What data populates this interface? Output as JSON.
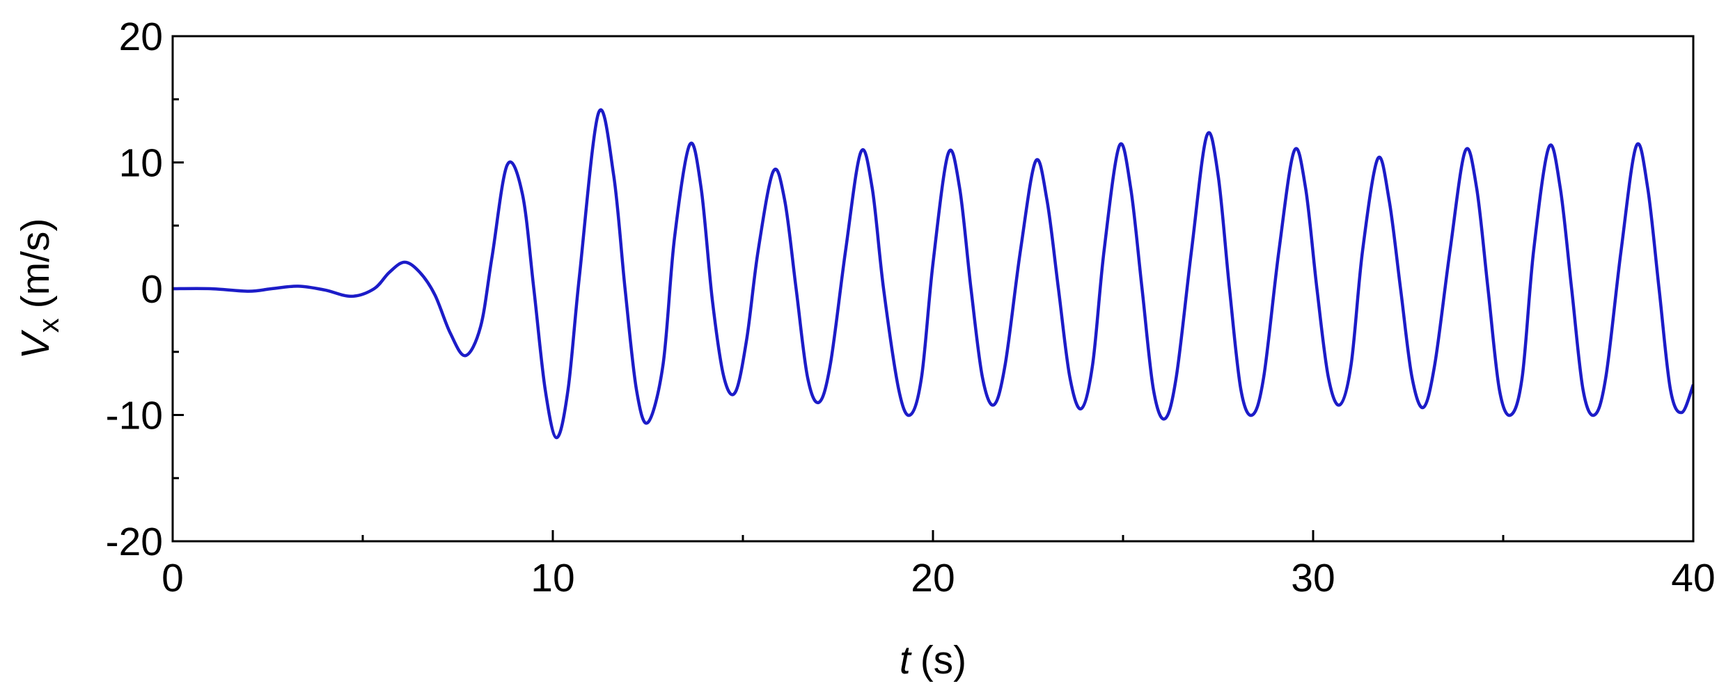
{
  "chart_data": {
    "type": "line",
    "xlabel": {
      "variable": "t",
      "unit": "(s)"
    },
    "ylabel": {
      "variable": "V",
      "subscript": "x",
      "unit": "(m/s)"
    },
    "x": [
      0,
      1,
      2,
      2.6,
      3.3,
      4.0,
      4.7,
      5.3,
      5.7,
      6.1,
      6.5,
      6.9,
      7.3,
      7.7,
      8.1,
      8.4,
      8.8,
      9.2,
      9.5,
      9.8,
      10.1,
      10.4,
      10.7,
      11.2,
      11.6,
      11.9,
      12.2,
      12.5,
      12.9,
      13.2,
      13.6,
      13.9,
      14.2,
      14.5,
      14.8,
      15.1,
      15.4,
      15.8,
      16.1,
      16.4,
      16.7,
      17.0,
      17.3,
      17.7,
      18.1,
      18.4,
      18.7,
      19.1,
      19.4,
      19.7,
      20.0,
      20.4,
      20.7,
      21.0,
      21.3,
      21.6,
      21.9,
      22.3,
      22.7,
      23.0,
      23.3,
      23.6,
      23.9,
      24.2,
      24.5,
      24.9,
      25.2,
      25.5,
      25.8,
      26.1,
      26.4,
      26.8,
      27.2,
      27.5,
      27.8,
      28.1,
      28.4,
      28.7,
      29.1,
      29.5,
      29.8,
      30.1,
      30.4,
      30.7,
      31.0,
      31.3,
      31.7,
      32.0,
      32.3,
      32.6,
      32.9,
      33.2,
      33.6,
      34.0,
      34.3,
      34.6,
      34.9,
      35.2,
      35.5,
      35.8,
      36.2,
      36.5,
      36.8,
      37.1,
      37.4,
      37.7,
      38.1,
      38.5,
      38.8,
      39.1,
      39.4,
      39.7,
      40
    ],
    "series": [
      {
        "color": "#1c1cc8",
        "values": [
          0,
          0,
          -0.2,
          0,
          0.2,
          -0.1,
          -0.6,
          0,
          1.3,
          2.1,
          1.3,
          -0.5,
          -3.5,
          -5.3,
          -3.0,
          2.5,
          9.8,
          7.5,
          0,
          -8.0,
          -11.8,
          -8,
          1,
          13.9,
          9,
          0,
          -8,
          -10.6,
          -6,
          4,
          11.4,
          8,
          -1,
          -7,
          -8.2,
          -4,
          3,
          9.3,
          7,
          0,
          -7,
          -9.0,
          -6,
          3,
          10.8,
          8,
          0,
          -8,
          -10.0,
          -7,
          2,
          10.7,
          8,
          0,
          -7,
          -9.2,
          -6,
          3,
          10.1,
          7,
          0,
          -7,
          -9.5,
          -6,
          3,
          11.3,
          8,
          0,
          -8,
          -10.3,
          -7,
          3,
          12.1,
          9,
          0,
          -8,
          -10.0,
          -7,
          3,
          10.9,
          8,
          0,
          -7,
          -9.2,
          -6,
          3,
          10.3,
          7,
          0,
          -7,
          -9.4,
          -6,
          3,
          10.9,
          8,
          0,
          -8,
          -10.0,
          -7,
          3,
          11.2,
          8,
          0,
          -8,
          -10.0,
          -7,
          3,
          11.3,
          8,
          0,
          -8,
          -9.8,
          -7.6
        ]
      }
    ],
    "xlim": [
      0,
      40
    ],
    "xticks": [
      0,
      10,
      20,
      30,
      40
    ],
    "xminor": [
      5,
      15,
      25,
      35
    ],
    "ylim": [
      -20,
      20
    ],
    "yticks": [
      -20,
      -10,
      0,
      10,
      20
    ],
    "yminor": [
      -15,
      -5,
      5,
      15
    ]
  }
}
